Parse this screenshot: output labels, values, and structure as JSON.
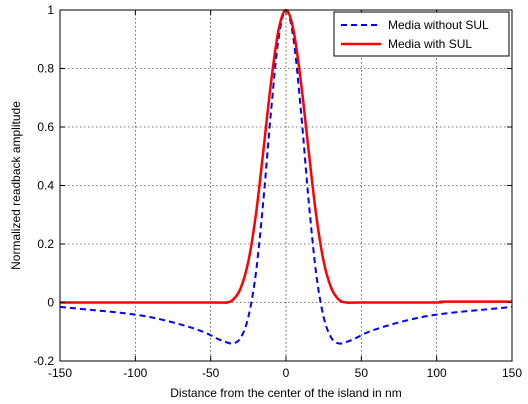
{
  "chart_data": {
    "type": "line",
    "xlabel": "Distance from the center of the island in nm",
    "ylabel": "Normalized readback amplitude",
    "xlim": [
      -150,
      150
    ],
    "ylim": [
      -0.2,
      1.0
    ],
    "xticks": [
      -150,
      -100,
      -50,
      0,
      50,
      100,
      150
    ],
    "yticks": [
      -0.2,
      0,
      0.2,
      0.4,
      0.6,
      0.8,
      1.0
    ],
    "ytick_labels": [
      "-0.2",
      "0",
      "0.2",
      "0.4",
      "0.6",
      "0.8",
      "1"
    ],
    "grid": true,
    "legend_position": "top-right",
    "series": [
      {
        "name": "Media without SUL",
        "color": "#0000ff",
        "style": "dashed",
        "x": [
          -150,
          -130,
          -110,
          -90,
          -70,
          -55,
          -45,
          -40,
          -35,
          -30,
          -25,
          -20,
          -15,
          -10,
          -5,
          0,
          5,
          10,
          15,
          20,
          25,
          30,
          35,
          40,
          45,
          55,
          70,
          90,
          110,
          130,
          150
        ],
        "y": [
          -0.015,
          -0.025,
          -0.035,
          -0.05,
          -0.075,
          -0.1,
          -0.125,
          -0.135,
          -0.14,
          -0.12,
          -0.05,
          0.1,
          0.35,
          0.65,
          0.9,
          1.0,
          0.9,
          0.65,
          0.35,
          0.1,
          -0.05,
          -0.12,
          -0.14,
          -0.135,
          -0.125,
          -0.1,
          -0.075,
          -0.05,
          -0.035,
          -0.025,
          -0.015
        ]
      },
      {
        "name": "Media with SUL",
        "color": "#ff0000",
        "style": "solid",
        "x": [
          -150,
          -50,
          -40,
          -35,
          -30,
          -25,
          -20,
          -15,
          -10,
          -5,
          0,
          5,
          10,
          15,
          20,
          25,
          30,
          35,
          40,
          50,
          100,
          105,
          150
        ],
        "y": [
          0,
          0,
          0.0,
          0.01,
          0.05,
          0.14,
          0.3,
          0.52,
          0.75,
          0.93,
          1.0,
          0.93,
          0.75,
          0.52,
          0.3,
          0.14,
          0.05,
          0.01,
          0.0,
          0,
          0,
          0.003,
          0.003
        ]
      }
    ]
  }
}
